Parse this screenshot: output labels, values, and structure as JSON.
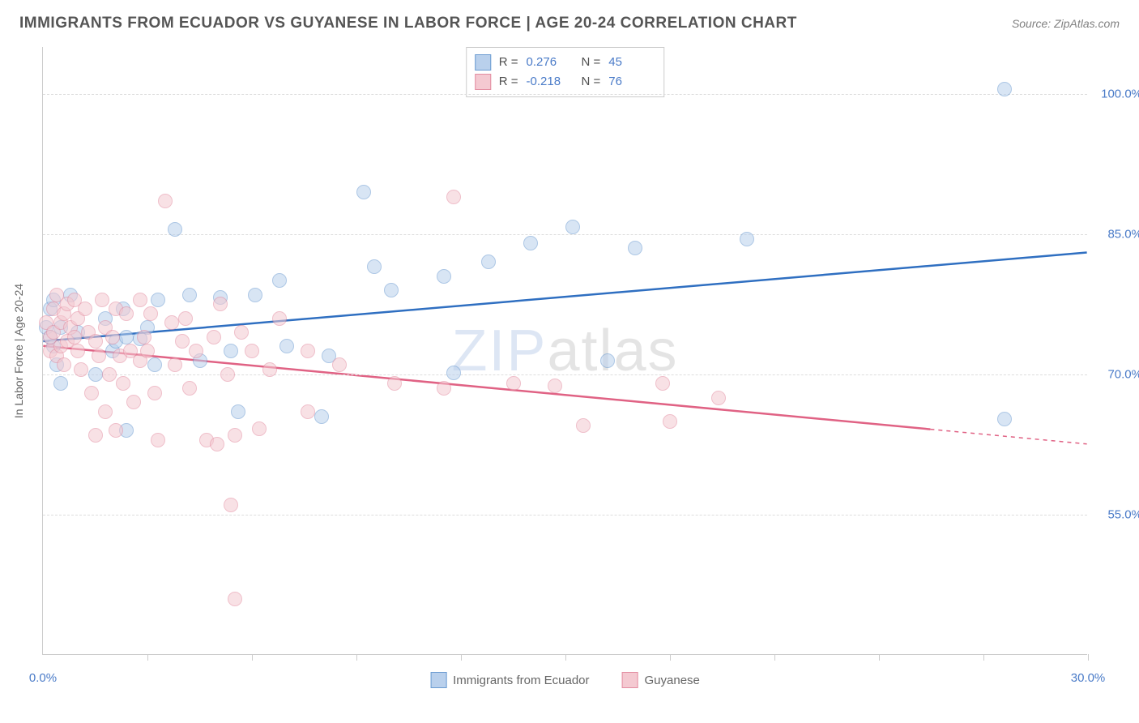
{
  "title": "IMMIGRANTS FROM ECUADOR VS GUYANESE IN LABOR FORCE | AGE 20-24 CORRELATION CHART",
  "source": "Source: ZipAtlas.com",
  "watermark_main": "ZIP",
  "watermark_tail": "atlas",
  "chart": {
    "type": "scatter",
    "y_axis_title": "In Labor Force | Age 20-24",
    "xlim": [
      0,
      30
    ],
    "ylim": [
      40,
      105
    ],
    "x_ticks_minor": [
      3,
      6,
      9,
      12,
      15,
      18,
      21,
      24,
      27,
      30
    ],
    "x_tick_labels": [
      {
        "v": 0,
        "label": "0.0%"
      },
      {
        "v": 30,
        "label": "30.0%"
      }
    ],
    "y_gridlines": [
      55,
      70,
      85,
      100
    ],
    "y_tick_labels": [
      {
        "v": 55,
        "label": "55.0%"
      },
      {
        "v": 70,
        "label": "70.0%"
      },
      {
        "v": 85,
        "label": "85.0%"
      },
      {
        "v": 100,
        "label": "100.0%"
      }
    ],
    "grid_color": "#dddddd",
    "axis_color": "#cccccc",
    "background_color": "#ffffff",
    "marker_radius": 9,
    "marker_opacity": 0.55,
    "series": [
      {
        "id": "ecuador",
        "label": "Immigrants from Ecuador",
        "fill": "#b9d0ec",
        "stroke": "#6b9bd1",
        "line_color": "#2f6fc1",
        "R": "0.276",
        "N": "45",
        "trend": {
          "x1": 0,
          "y1": 73.5,
          "x2": 30,
          "y2": 83.0,
          "dash_after_x": null
        },
        "points": [
          [
            0.1,
            75
          ],
          [
            0.2,
            77
          ],
          [
            0.2,
            74
          ],
          [
            0.3,
            73
          ],
          [
            0.3,
            78
          ],
          [
            0.4,
            71
          ],
          [
            0.5,
            69
          ],
          [
            0.5,
            75
          ],
          [
            0.8,
            78.5
          ],
          [
            1.0,
            74.5
          ],
          [
            1.5,
            70
          ],
          [
            1.8,
            76
          ],
          [
            2.0,
            72.5
          ],
          [
            2.1,
            73.5
          ],
          [
            2.3,
            77
          ],
          [
            2.4,
            74
          ],
          [
            2.4,
            64
          ],
          [
            2.8,
            73.8
          ],
          [
            3.0,
            75
          ],
          [
            3.2,
            71
          ],
          [
            3.3,
            78
          ],
          [
            3.8,
            85.5
          ],
          [
            4.2,
            78.5
          ],
          [
            4.5,
            71.5
          ],
          [
            5.1,
            78.2
          ],
          [
            5.4,
            72.5
          ],
          [
            5.6,
            66
          ],
          [
            6.1,
            78.5
          ],
          [
            6.8,
            80
          ],
          [
            7.0,
            73
          ],
          [
            8.0,
            65.5
          ],
          [
            8.2,
            72
          ],
          [
            9.2,
            89.5
          ],
          [
            9.5,
            81.5
          ],
          [
            10.0,
            79
          ],
          [
            11.5,
            80.5
          ],
          [
            11.8,
            70.2
          ],
          [
            12.8,
            82
          ],
          [
            14.0,
            84
          ],
          [
            15.2,
            85.8
          ],
          [
            16.2,
            71.5
          ],
          [
            17.0,
            83.5
          ],
          [
            20.2,
            84.5
          ],
          [
            27.6,
            100.5
          ],
          [
            27.6,
            65.2
          ]
        ]
      },
      {
        "id": "guyanese",
        "label": "Guyanese",
        "fill": "#f4c9d1",
        "stroke": "#e38ca0",
        "line_color": "#e06284",
        "R": "-0.218",
        "N": "76",
        "trend": {
          "x1": 0,
          "y1": 73.0,
          "x2": 30,
          "y2": 62.5,
          "dash_after_x": 25.5
        },
        "points": [
          [
            0.1,
            75.5
          ],
          [
            0.2,
            74
          ],
          [
            0.2,
            72.5
          ],
          [
            0.3,
            77
          ],
          [
            0.3,
            74.5
          ],
          [
            0.4,
            72
          ],
          [
            0.4,
            78.5
          ],
          [
            0.5,
            75.5
          ],
          [
            0.5,
            73
          ],
          [
            0.6,
            76.5
          ],
          [
            0.6,
            71
          ],
          [
            0.7,
            77.5
          ],
          [
            0.7,
            73.5
          ],
          [
            0.8,
            75
          ],
          [
            0.9,
            74
          ],
          [
            0.9,
            78
          ],
          [
            1.0,
            72.5
          ],
          [
            1.0,
            76
          ],
          [
            1.1,
            70.5
          ],
          [
            1.2,
            77
          ],
          [
            1.3,
            74.5
          ],
          [
            1.4,
            68
          ],
          [
            1.5,
            73.5
          ],
          [
            1.5,
            63.5
          ],
          [
            1.6,
            72
          ],
          [
            1.7,
            78
          ],
          [
            1.8,
            66
          ],
          [
            1.8,
            75
          ],
          [
            1.9,
            70
          ],
          [
            2.0,
            74
          ],
          [
            2.1,
            64
          ],
          [
            2.1,
            77
          ],
          [
            2.2,
            72
          ],
          [
            2.3,
            69
          ],
          [
            2.4,
            76.5
          ],
          [
            2.5,
            72.5
          ],
          [
            2.6,
            67
          ],
          [
            2.8,
            71.5
          ],
          [
            2.8,
            78
          ],
          [
            2.9,
            74
          ],
          [
            3.0,
            72.5
          ],
          [
            3.1,
            76.5
          ],
          [
            3.2,
            68
          ],
          [
            3.3,
            63
          ],
          [
            3.5,
            88.5
          ],
          [
            3.7,
            75.5
          ],
          [
            3.8,
            71
          ],
          [
            4.0,
            73.5
          ],
          [
            4.1,
            76
          ],
          [
            4.2,
            68.5
          ],
          [
            4.4,
            72.5
          ],
          [
            4.7,
            63
          ],
          [
            4.9,
            74
          ],
          [
            5.0,
            62.5
          ],
          [
            5.1,
            77.5
          ],
          [
            5.3,
            70
          ],
          [
            5.5,
            63.5
          ],
          [
            5.4,
            56
          ],
          [
            5.5,
            46
          ],
          [
            5.7,
            74.5
          ],
          [
            6.0,
            72.5
          ],
          [
            6.2,
            64.2
          ],
          [
            6.5,
            70.5
          ],
          [
            6.8,
            76
          ],
          [
            7.6,
            66
          ],
          [
            7.6,
            72.5
          ],
          [
            8.5,
            71.0
          ],
          [
            10.1,
            69
          ],
          [
            11.5,
            68.5
          ],
          [
            11.8,
            89
          ],
          [
            13.5,
            69
          ],
          [
            14.7,
            68.8
          ],
          [
            15.5,
            64.5
          ],
          [
            17.8,
            69.0
          ],
          [
            18.0,
            65
          ],
          [
            19.4,
            67.5
          ]
        ]
      }
    ],
    "legend_top_labels": {
      "R": "R =",
      "N": "N ="
    },
    "label_fontsize": 15,
    "title_fontsize": 19,
    "value_color": "#4a7bc8",
    "text_color": "#666666"
  }
}
